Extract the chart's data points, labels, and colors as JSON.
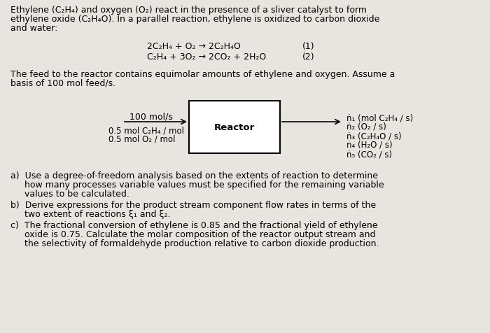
{
  "bg_color": "#e8e5e0",
  "title_text_line1": "Ethylene (C₂H₄) and oxygen (O₂) react in the presence of a sliver catalyst to form",
  "title_text_line2": "ethylene oxide (C₂H₄O). In a parallel reaction, ethylene is oxidized to carbon dioxide",
  "title_text_line3": "and water:",
  "reaction1": "2C₂H₄ + O₂ → 2C₂H₄O",
  "reaction2": "C₂H₄ + 3O₂ → 2CO₂ + 2H₂O",
  "reaction1_num": "(1)",
  "reaction2_num": "(2)",
  "feed_line1": "The feed to the reactor contains equimolar amounts of ethylene and oxygen. Assume a",
  "feed_line2": "basis of 100 mol feed/s.",
  "flow_label": "100 mol/s",
  "composition1": "0.5 mol C₂H₄ / mol",
  "composition2": "0.5 mol O₂ / mol",
  "reactor_label": "Reactor",
  "outlet1": "ṅ₁ (mol C₂H₄ / s)",
  "outlet2": "ṅ₂ (O₂ / s)",
  "outlet3": "ṅ₃ (C₂H₄O / s)",
  "outlet4": "ṅ₄ (H₂O / s)",
  "outlet5": "ṅ₅ (CO₂ / s)",
  "part_a_line1": "a)  Use a degree-of-freedom analysis based on the extents of reaction to determine",
  "part_a_line2": "     how many processes variable values must be specified for the remaining variable",
  "part_a_line3": "     values to be calculated.",
  "part_b_line1": "b)  Derive expressions for the product stream component flow rates in terms of the",
  "part_b_line2": "     two extent of reactions ξ₁ and ξ₂.",
  "part_c_line1": "c)  The fractional conversion of ethylene is 0.85 and the fractional yield of ethylene",
  "part_c_line2": "     oxide is 0.75. Calculate the molar composition of the reactor output stream and",
  "part_c_line3": "     the selectivity of formaldehyde production relative to carbon dioxide production.",
  "font_size": 9.0,
  "font_size_reaction": 9.0,
  "font_size_reactor": 9.5
}
